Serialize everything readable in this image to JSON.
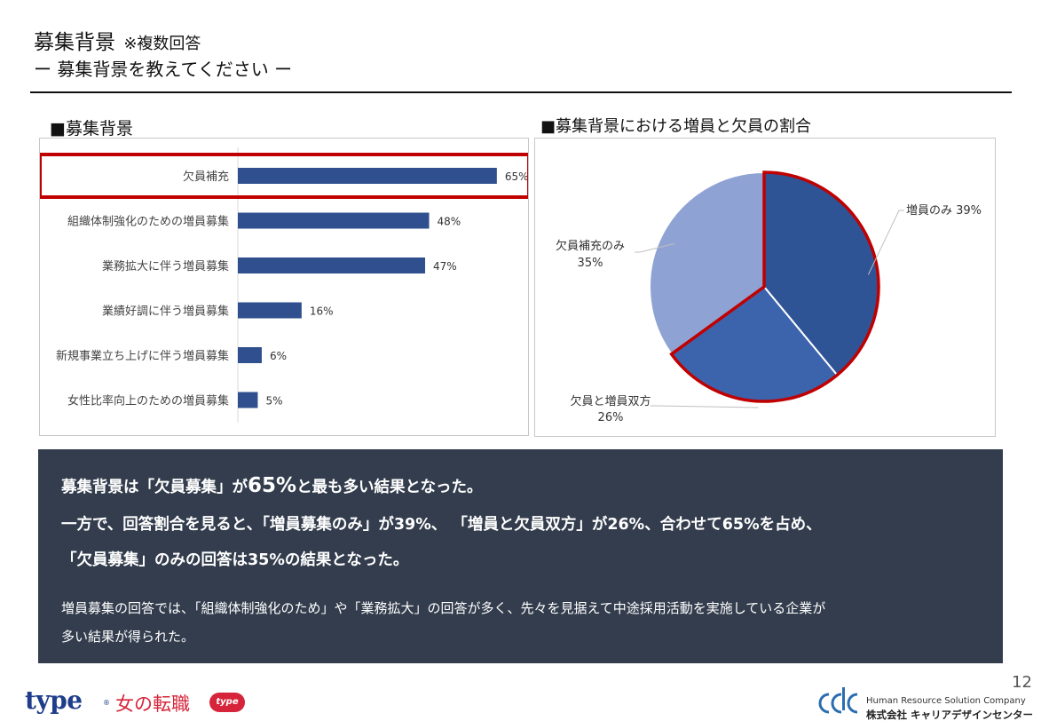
{
  "header": {
    "title": "募集背景",
    "title_note": "※複数回答",
    "subtitle": "ー 募集背景を教えてください ー"
  },
  "bar_panel": {
    "title": "■募集背景"
  },
  "pie_panel": {
    "title": "■募集背景における増員と欠員の割合"
  },
  "chart_data": [
    {
      "type": "bar",
      "orientation": "horizontal",
      "title": "■募集背景",
      "categories": [
        "欠員補充",
        "組織体制強化のための増員募集",
        "業務拡大に伴う増員募集",
        "業績好調に伴う増員募集",
        "新規事業立ち上げに伴う増員募集",
        "女性比率向上のための増員募集"
      ],
      "values": [
        65,
        48,
        47,
        16,
        6,
        5
      ],
      "value_labels": [
        "65%",
        "48%",
        "47%",
        "16%",
        "6%",
        "5%"
      ],
      "unit": "%",
      "xlim": [
        0,
        100
      ],
      "highlight_index": 0,
      "highlight_color": "#c00000",
      "bar_color": "#2f4f8f",
      "grid": false
    },
    {
      "type": "pie",
      "title": "■募集背景における増員と欠員の割合",
      "categories": [
        "増員のみ",
        "欠員と増員双方",
        "欠員補充のみ"
      ],
      "values": [
        39,
        26,
        35
      ],
      "labels": [
        "増員のみ 39%",
        "欠員と増員双方",
        "欠員補充のみ"
      ],
      "percent_labels": [
        "",
        "26%",
        "35%"
      ],
      "colors": [
        "#2f5496",
        "#3b64ad",
        "#8fa2d4"
      ],
      "highlight_slices": [
        0,
        1
      ],
      "highlight_color": "#c00000"
    }
  ],
  "summary": {
    "line1_a": "募集背景は「欠員募集」が",
    "line1_big": "65%",
    "line1_b": "と最も多い結果となった。",
    "line2": "一方で、回答割合を見ると、「増員募集のみ」が39%、 「増員と欠員双方」が26%、合わせて65%を占め、",
    "line3": "「欠員募集」のみの回答は35%の結果となった。",
    "line4": "増員募集の回答では、「組織体制強化のため」や「業務拡大」の回答が多く、先々を見据えて中途採用活動を実施している企業が",
    "line5": "多い結果が得られた。"
  },
  "footer": {
    "page_number": "12",
    "logo_type": "type",
    "logo_reg": "®",
    "logo_onna": "女の転職",
    "logo_pill": "type",
    "company_en": "Human Resource Solution Company",
    "company_jp": "株式会社 キャリアデザインセンター"
  }
}
